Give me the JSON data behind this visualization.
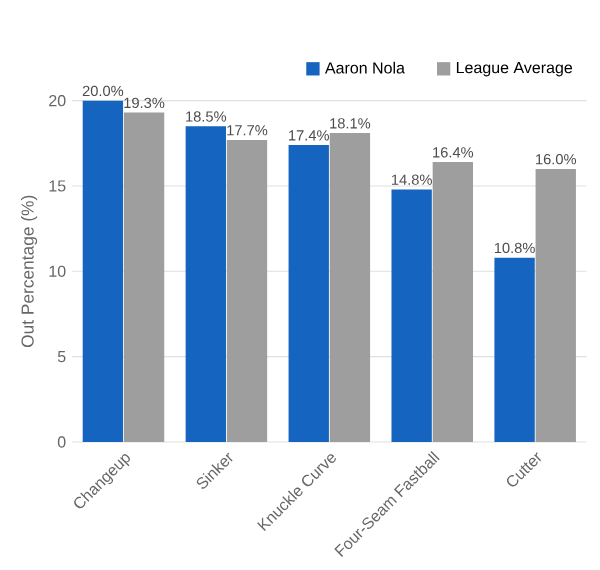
{
  "chart_data": {
    "type": "bar",
    "ylabel": "Out Percentage (%)",
    "categories": [
      "Changeup",
      "Sinker",
      "Knuckle Curve",
      "Four-Seam Fastball",
      "Cutter"
    ],
    "series": [
      {
        "name": "Aaron Nola",
        "color": "#1565c0",
        "values": [
          20.0,
          18.5,
          17.4,
          14.8,
          10.8
        ],
        "value_labels": [
          "20.0%",
          "18.5%",
          "17.4%",
          "14.8%",
          "10.8%"
        ]
      },
      {
        "name": "League Average",
        "color": "#9e9e9e",
        "values": [
          19.3,
          17.7,
          18.1,
          16.4,
          16.0
        ],
        "value_labels": [
          "19.3%",
          "17.7%",
          "18.1%",
          "16.4%",
          "16.0%"
        ]
      }
    ],
    "ylim": [
      0,
      20
    ],
    "yticks": [
      0,
      5,
      10,
      15,
      20
    ],
    "grid": "y",
    "legend": "top right"
  }
}
